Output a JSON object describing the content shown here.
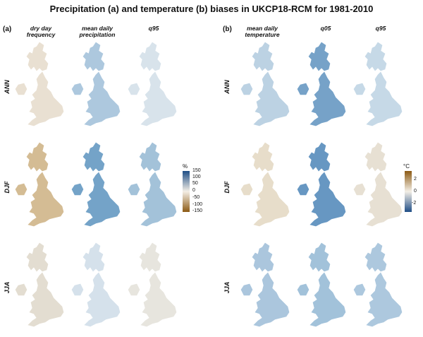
{
  "title": "Precipitation (a) and temperature (b) biases in UKCP18-RCM for 1981-2010",
  "panels": [
    {
      "label": "(a)",
      "columns": [
        "dry day\nfrequency",
        "mean daily\nprecipitation",
        "q95"
      ],
      "colorbar": {
        "unit": "%",
        "ticks": [
          "150",
          "100",
          "50",
          "0",
          "-50",
          "-100",
          "-150"
        ],
        "colors": {
          "high": "#1f4e86",
          "mid": "#f4efe6",
          "low": "#8c5a14"
        }
      }
    },
    {
      "label": "(b)",
      "columns": [
        "mean daily\ntemperature",
        "q05",
        "q95"
      ],
      "colorbar": {
        "unit": "°C",
        "ticks": [
          "2",
          "0",
          "-2"
        ],
        "colors": {
          "high": "#8c5a14",
          "mid": "#f4efe6",
          "low": "#1f4e86"
        }
      }
    }
  ],
  "rows": [
    "ANN",
    "DJF",
    "JJA"
  ],
  "map_fills": {
    "a": [
      [
        "#e8dfd0",
        "#a9c6dd",
        "#d6e2ea"
      ],
      [
        "#d2b98f",
        "#6d9fc6",
        "#9fbfd8"
      ],
      [
        "#e2dccf",
        "#d3e0ea",
        "#e6e4dd"
      ]
    ],
    "b": [
      [
        "#b9d0e2",
        "#6f9ec6",
        "#c3d7e6"
      ],
      [
        "#e6dcc8",
        "#5f92bf",
        "#e6dfd1"
      ],
      [
        "#a7c4dc",
        "#9ebfd9",
        "#a9c6dd"
      ]
    ]
  }
}
